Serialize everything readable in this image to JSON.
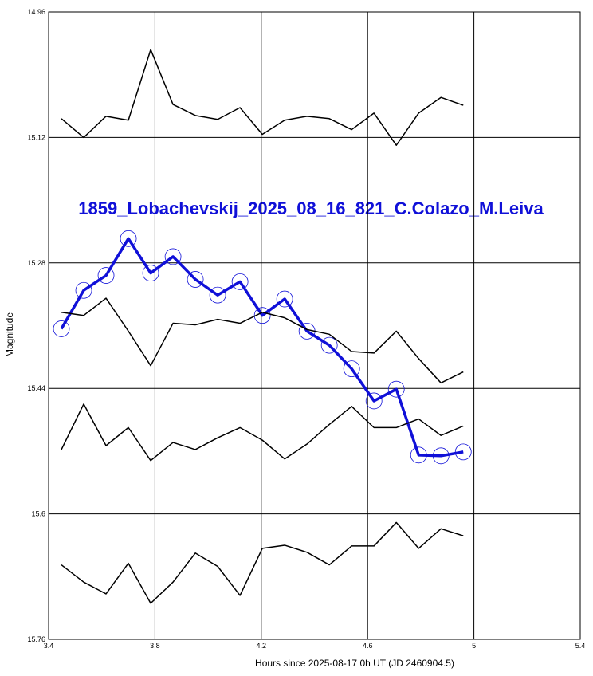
{
  "chart_data": {
    "type": "line",
    "title": "1859_Lobachevskij_2025_08_16_821_C.Colazo_M.Leiva",
    "x_label": "Hours since 2025-08-17 0h UT (JD 2460904.5)",
    "y_label": "Magnitude",
    "x": [
      3.448,
      3.532,
      3.616,
      3.7,
      3.784,
      3.868,
      3.952,
      4.036,
      4.12,
      4.204,
      4.288,
      4.372,
      4.456,
      4.54,
      4.624,
      4.708,
      4.792,
      4.876,
      4.96
    ],
    "series": [
      {
        "color": "#1010d8",
        "marker": "circle",
        "line_width": 3.5,
        "values": [
          15.364,
          15.315,
          15.296,
          15.249,
          15.293,
          15.272,
          15.301,
          15.321,
          15.304,
          15.347,
          15.326,
          15.367,
          15.385,
          15.415,
          15.456,
          15.441,
          15.525,
          15.526,
          15.521
        ]
      },
      {
        "color": "#000000",
        "line_width": 1.5,
        "values": [
          15.096,
          15.12,
          15.093,
          15.098,
          15.008,
          15.078,
          15.092,
          15.097,
          15.082,
          15.116,
          15.098,
          15.093,
          15.096,
          15.11,
          15.089,
          15.13,
          15.089,
          15.069,
          15.079
        ]
      },
      {
        "color": "#000000",
        "line_width": 1.5,
        "values": [
          15.343,
          15.347,
          15.325,
          15.367,
          15.411,
          15.357,
          15.359,
          15.352,
          15.357,
          15.343,
          15.35,
          15.365,
          15.371,
          15.393,
          15.395,
          15.367,
          15.402,
          15.433,
          15.419
        ]
      },
      {
        "color": "#000000",
        "line_width": 1.5,
        "values": [
          15.518,
          15.46,
          15.513,
          15.49,
          15.532,
          15.509,
          15.518,
          15.503,
          15.49,
          15.506,
          15.53,
          15.511,
          15.486,
          15.463,
          15.49,
          15.49,
          15.479,
          15.5,
          15.488
        ]
      },
      {
        "color": "#000000",
        "line_width": 1.5,
        "values": [
          15.665,
          15.687,
          15.702,
          15.663,
          15.714,
          15.687,
          15.65,
          15.667,
          15.704,
          15.644,
          15.64,
          15.649,
          15.665,
          15.641,
          15.641,
          15.611,
          15.644,
          15.619,
          15.628
        ]
      }
    ],
    "xlim": [
      3.4,
      5.4
    ],
    "xticks": [
      3.4,
      3.8,
      4.2,
      4.6,
      5,
      5.4
    ],
    "ylim": [
      15.76,
      14.96
    ],
    "yticks": [
      14.96,
      15.12,
      15.28,
      15.44,
      15.6,
      15.76
    ],
    "grid": true
  }
}
